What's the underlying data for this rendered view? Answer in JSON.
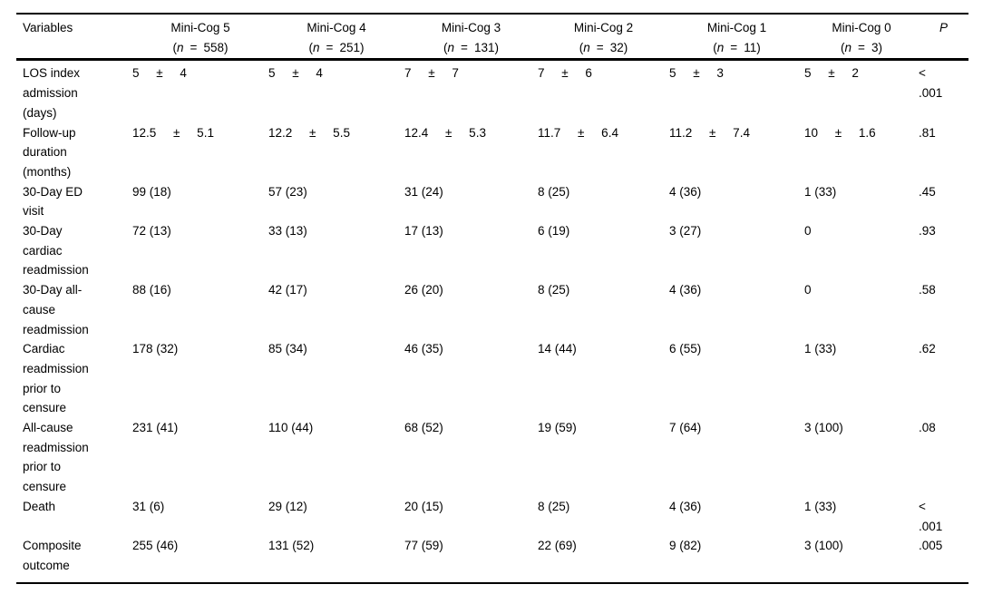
{
  "table": {
    "variables_header": "Variables",
    "p_header": "P",
    "n_format": {
      "open": "(",
      "var": "n",
      "eq": "=",
      "close": ")"
    },
    "columns": [
      {
        "label": "Mini-Cog 5",
        "n": "558"
      },
      {
        "label": "Mini-Cog 4",
        "n": "251"
      },
      {
        "label": "Mini-Cog 3",
        "n": "131"
      },
      {
        "label": "Mini-Cog 2",
        "n": "32"
      },
      {
        "label": "Mini-Cog 1",
        "n": "11"
      },
      {
        "label": "Mini-Cog 0",
        "n": "3"
      }
    ],
    "rows": [
      {
        "label": "LOS index admission (days)",
        "type": "mean",
        "values": [
          "5 ± 4",
          "5 ± 4",
          "7 ± 7",
          "7 ± 6",
          "5 ± 3",
          "5 ± 2"
        ],
        "p": "< .001"
      },
      {
        "label": "Follow-up duration (months)",
        "type": "mean",
        "values": [
          "12.5 ± 5.1",
          "12.2 ± 5.5",
          "12.4 ± 5.3",
          "11.7 ± 6.4",
          "11.2 ± 7.4",
          "10 ± 1.6"
        ],
        "p": ".81"
      },
      {
        "label": "30-Day ED visit",
        "type": "count",
        "values": [
          "99 (18)",
          "57 (23)",
          "31 (24)",
          "8 (25)",
          "4 (36)",
          "1 (33)"
        ],
        "p": ".45"
      },
      {
        "label": "30-Day cardiac readmission",
        "type": "count",
        "values": [
          "72 (13)",
          "33 (13)",
          "17 (13)",
          "6 (19)",
          "3 (27)",
          "0"
        ],
        "p": ".93"
      },
      {
        "label": "30-Day all-cause readmission",
        "type": "count",
        "values": [
          "88 (16)",
          "42 (17)",
          "26 (20)",
          "8 (25)",
          "4 (36)",
          "0"
        ],
        "p": ".58"
      },
      {
        "label": "Cardiac readmission prior to censure",
        "type": "count",
        "values": [
          "178 (32)",
          "85 (34)",
          "46 (35)",
          "14 (44)",
          "6 (55)",
          "1 (33)"
        ],
        "p": ".62"
      },
      {
        "label": "All-cause readmission prior to censure",
        "type": "count",
        "values": [
          "231 (41)",
          "110 (44)",
          "68 (52)",
          "19 (59)",
          "7 (64)",
          "3 (100)"
        ],
        "p": ".08"
      },
      {
        "label": "Death",
        "type": "count",
        "values": [
          "31 (6)",
          "29 (12)",
          "20 (15)",
          "8 (25)",
          "4 (36)",
          "1 (33)"
        ],
        "p": "< .001"
      },
      {
        "label": "Composite outcome",
        "type": "count",
        "values": [
          "255 (46)",
          "131 (52)",
          "77 (59)",
          "22 (69)",
          "9 (82)",
          "3 (100)"
        ],
        "p": ".005"
      }
    ]
  },
  "colors": {
    "text": "#000000",
    "rule": "#000000",
    "background": "#ffffff"
  }
}
